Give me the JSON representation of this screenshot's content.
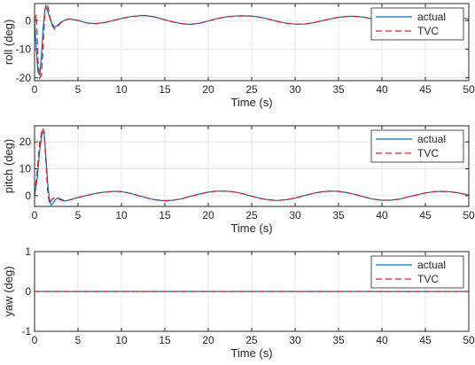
{
  "figure": {
    "background": "#ffffff"
  },
  "colors": {
    "actual": "#0072BD",
    "tvc": "#D6252E",
    "grid": "#e6e6e6",
    "axis": "#262626"
  },
  "chart_data": [
    {
      "type": "line",
      "xlabel": "Time (s)",
      "ylabel": "roll (deg)",
      "xlim": [
        0,
        50
      ],
      "ylim": [
        -21,
        6
      ],
      "xticks": [
        0,
        5,
        10,
        15,
        20,
        25,
        30,
        35,
        40,
        45,
        50
      ],
      "yticks": [
        -20,
        -10,
        0
      ],
      "grid": true,
      "legend_position": "top-right",
      "x": [
        0,
        0.2,
        0.4,
        0.6,
        0.8,
        1.0,
        1.2,
        1.4,
        1.6,
        1.8,
        2.0,
        2.3,
        2.6,
        3.0,
        3.5,
        4,
        5,
        6,
        7,
        8,
        9,
        10,
        11,
        12,
        12.5,
        13,
        14,
        15,
        16,
        17,
        18,
        19,
        20,
        21,
        22,
        23,
        24,
        25,
        26,
        27,
        28,
        29,
        30,
        31,
        32,
        33,
        34,
        35,
        36,
        37,
        38,
        39,
        40,
        41,
        42,
        43,
        44,
        45,
        46,
        47,
        48,
        49,
        50
      ],
      "series": [
        {
          "name": "actual",
          "style": "solid",
          "values": [
            0,
            -10,
            -18,
            -19,
            -12,
            -2,
            4,
            4.5,
            2.5,
            0.5,
            -1,
            -2.3,
            -1.8,
            -0.6,
            0.2,
            0.6,
            0.1,
            -0.8,
            -1.0,
            -0.7,
            0.0,
            0.8,
            1.4,
            1.7,
            1.8,
            1.7,
            1.2,
            0.3,
            -0.5,
            -1.1,
            -1.3,
            -0.9,
            -0.1,
            0.7,
            1.3,
            1.6,
            1.7,
            1.6,
            1.2,
            0.5,
            -0.3,
            -0.9,
            -1.2,
            -1.2,
            -0.8,
            -0.1,
            0.6,
            1.2,
            1.5,
            1.5,
            1.2,
            0.6,
            -0.2,
            -0.9,
            -1.3,
            -1.2,
            -0.7,
            0.0,
            0.8,
            1.3,
            1.4,
            1.1,
            0.5
          ]
        },
        {
          "name": "TVC",
          "style": "dashed",
          "values": [
            0,
            2,
            -14,
            -20,
            -19,
            -8,
            4,
            6,
            4,
            1,
            -1.5,
            -3.0,
            -2.3,
            -0.8,
            0.3,
            0.6,
            0.1,
            -0.8,
            -1.0,
            -0.7,
            0.0,
            0.8,
            1.4,
            1.7,
            1.8,
            1.7,
            1.2,
            0.3,
            -0.5,
            -1.1,
            -1.3,
            -0.9,
            -0.1,
            0.7,
            1.3,
            1.6,
            1.7,
            1.6,
            1.2,
            0.5,
            -0.3,
            -0.9,
            -1.2,
            -1.2,
            -0.8,
            -0.1,
            0.6,
            1.2,
            1.5,
            1.5,
            1.2,
            0.6,
            -0.2,
            -0.9,
            -1.3,
            -1.2,
            -0.7,
            0.0,
            0.8,
            1.3,
            1.4,
            1.1,
            0.5
          ]
        }
      ]
    },
    {
      "type": "line",
      "xlabel": "Time (s)",
      "ylabel": "pitch (deg)",
      "xlim": [
        0,
        50
      ],
      "ylim": [
        -4,
        26
      ],
      "xticks": [
        0,
        5,
        10,
        15,
        20,
        25,
        30,
        35,
        40,
        45,
        50
      ],
      "yticks": [
        0,
        10,
        20
      ],
      "grid": true,
      "legend_position": "top-right",
      "x": [
        0,
        0.3,
        0.6,
        0.9,
        1.1,
        1.3,
        1.5,
        1.7,
        1.9,
        2.1,
        2.4,
        2.7,
        3,
        3.5,
        4,
        5,
        6,
        7,
        8,
        9,
        9.5,
        10,
        11,
        12,
        13,
        14,
        15,
        16,
        17,
        18,
        19,
        20,
        21,
        22,
        23,
        24,
        25,
        26,
        27,
        28,
        29,
        30,
        31,
        32,
        33,
        34,
        35,
        36,
        37,
        38,
        39,
        40,
        41,
        42,
        43,
        44,
        45,
        46,
        47,
        48,
        49,
        50
      ],
      "series": [
        {
          "name": "actual",
          "style": "solid",
          "values": [
            0,
            6,
            17,
            24,
            23,
            15,
            5,
            -1,
            -3.5,
            -3,
            -1.5,
            -0.8,
            -1.2,
            -2.0,
            -1.6,
            -0.7,
            0.1,
            0.8,
            1.3,
            1.6,
            1.6,
            1.5,
            0.9,
            0.0,
            -0.9,
            -1.6,
            -1.9,
            -1.7,
            -1.1,
            -0.2,
            0.6,
            1.3,
            1.7,
            1.7,
            1.4,
            0.7,
            -0.2,
            -1.0,
            -1.6,
            -1.8,
            -1.5,
            -0.9,
            0.0,
            0.8,
            1.4,
            1.7,
            1.6,
            1.1,
            0.4,
            -0.5,
            -1.3,
            -1.7,
            -1.7,
            -1.3,
            -0.5,
            0.3,
            1.0,
            1.5,
            1.6,
            1.4,
            0.9,
            0.2
          ]
        },
        {
          "name": "TVC",
          "style": "dashed",
          "values": [
            0,
            9,
            20,
            25,
            24,
            13,
            2,
            -3,
            -2,
            -1,
            -1.0,
            -1.2,
            -1.6,
            -2.1,
            -1.6,
            -0.7,
            0.1,
            0.8,
            1.3,
            1.6,
            1.6,
            1.5,
            0.9,
            0.0,
            -0.9,
            -1.6,
            -1.9,
            -1.7,
            -1.1,
            -0.2,
            0.6,
            1.3,
            1.7,
            1.7,
            1.4,
            0.7,
            -0.2,
            -1.0,
            -1.6,
            -1.8,
            -1.5,
            -0.9,
            0.0,
            0.8,
            1.4,
            1.7,
            1.6,
            1.1,
            0.4,
            -0.5,
            -1.3,
            -1.7,
            -1.7,
            -1.3,
            -0.5,
            0.3,
            1.0,
            1.5,
            1.6,
            1.4,
            0.9,
            0.2
          ]
        }
      ]
    },
    {
      "type": "line",
      "xlabel": "Time (s)",
      "ylabel": "yaw (deg)",
      "xlim": [
        0,
        50
      ],
      "ylim": [
        -1,
        1
      ],
      "xticks": [
        0,
        5,
        10,
        15,
        20,
        25,
        30,
        35,
        40,
        45,
        50
      ],
      "yticks": [
        -1,
        0,
        1
      ],
      "grid": true,
      "legend_position": "top-right",
      "x": [
        0,
        50
      ],
      "series": [
        {
          "name": "actual",
          "style": "solid",
          "values": [
            0,
            0
          ]
        },
        {
          "name": "TVC",
          "style": "dashed",
          "values": [
            0,
            0
          ]
        }
      ]
    }
  ]
}
